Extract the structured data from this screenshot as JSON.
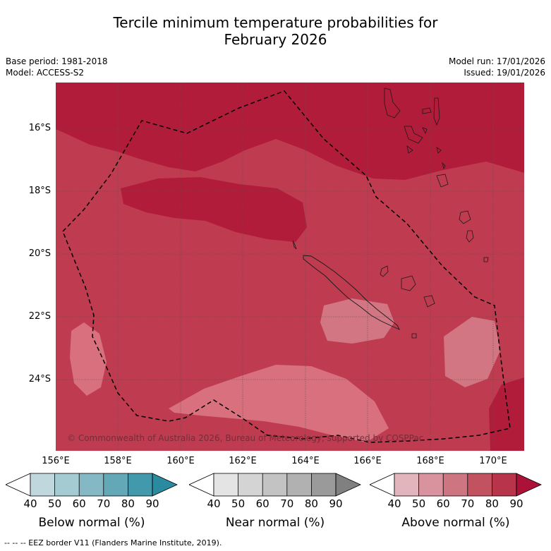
{
  "title_line1": "Tercile minimum temperature probabilities for",
  "title_line2": "February 2026",
  "base_period": "Base period: 1981-2018",
  "model": "Model: ACCESS-S2",
  "model_run": "Model run: 17/01/2026",
  "issued": "Issued: 19/01/2026",
  "lat_labels": [
    "16°S",
    "18°S",
    "20°S",
    "22°S",
    "24°S"
  ],
  "lon_labels": [
    "156°E",
    "158°E",
    "160°E",
    "162°E",
    "164°E",
    "166°E",
    "168°E",
    "170°E"
  ],
  "copyright": "© Commonwealth of Australia 2026, Bureau of Meteorology, supported by COSPPac",
  "colorbars": [
    {
      "label": "Below normal (%)",
      "colors": [
        "#c0d7de",
        "#a4cbd2",
        "#84b8c4",
        "#63a8b7",
        "#4199ab",
        "#2a8aa0"
      ]
    },
    {
      "label": "Near normal (%)",
      "colors": [
        "#e4e4e4",
        "#d4d4d4",
        "#c3c3c3",
        "#b1b1b1",
        "#9a9a9a",
        "#808080"
      ]
    },
    {
      "label": "Above normal (%)",
      "colors": [
        "#e2b5bd",
        "#d8939f",
        "#cd7581",
        "#c2525f",
        "#b8344a",
        "#ac1238"
      ]
    }
  ],
  "tick_labels": [
    "40",
    "50",
    "60",
    "70",
    "80",
    "90"
  ],
  "footer": "-- -- -- EEZ border V11 (Flanders Marine Institute, 2019)."
}
